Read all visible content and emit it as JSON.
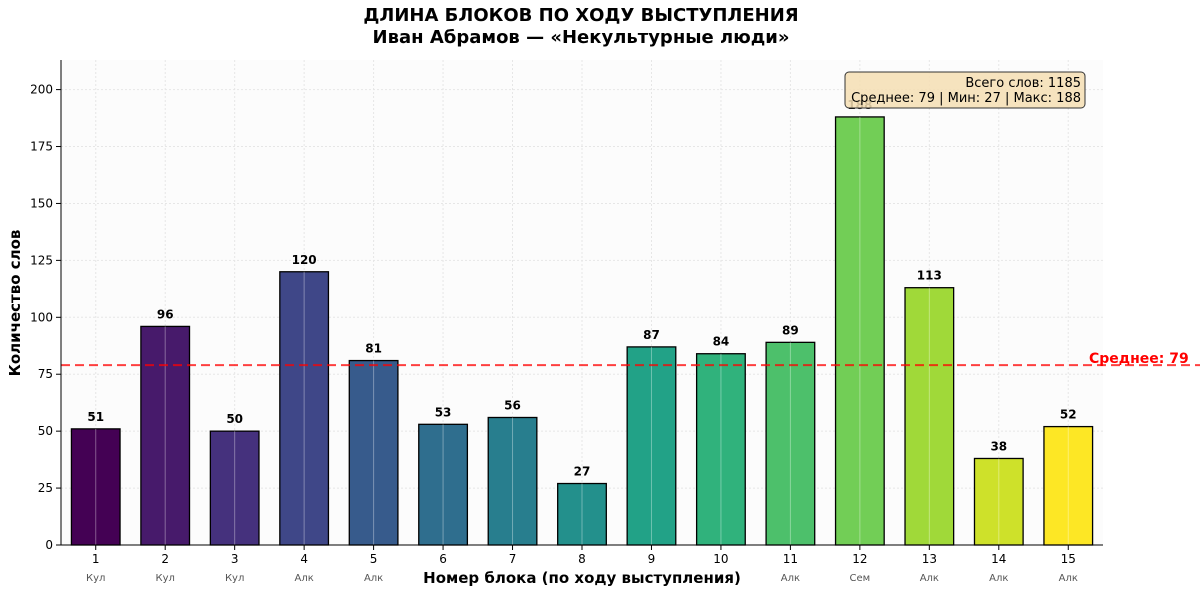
{
  "title": {
    "line1": "ДЛИНА БЛОКОВ ПО ХОДУ ВЫСТУПЛЕНИЯ",
    "line2": "Иван Абрамов — «Некультурные люди»"
  },
  "stats_box": {
    "line1": "Всего слов: 1185",
    "line2": "Среднее: 79 | Мин: 27 | Макс: 188"
  },
  "mean_label": "Среднее: 79",
  "colors": {
    "mean_line": "#ff0000",
    "stats_box_fill": "#f5deb3",
    "bar_palette": "viridis"
  },
  "chart_data": {
    "type": "bar",
    "xlabel": "Номер блока (по ходу выступления)",
    "ylabel": "Количество слов",
    "categories": [
      "1",
      "2",
      "3",
      "4",
      "5",
      "6",
      "7",
      "8",
      "9",
      "10",
      "11",
      "12",
      "13",
      "14",
      "15"
    ],
    "sublabels": [
      "Кул",
      "Кул",
      "Кул",
      "Алк",
      "Алк",
      "",
      "",
      "",
      "",
      "",
      "Алк",
      "Сем",
      "Алк",
      "Алк",
      "Алк"
    ],
    "values": [
      51,
      96,
      50,
      120,
      81,
      53,
      56,
      27,
      87,
      84,
      89,
      188,
      113,
      38,
      52
    ],
    "mean": 79,
    "ylim": [
      0,
      213
    ],
    "yticks": [
      0,
      25,
      50,
      75,
      100,
      125,
      150,
      175,
      200
    ],
    "grid": true
  }
}
